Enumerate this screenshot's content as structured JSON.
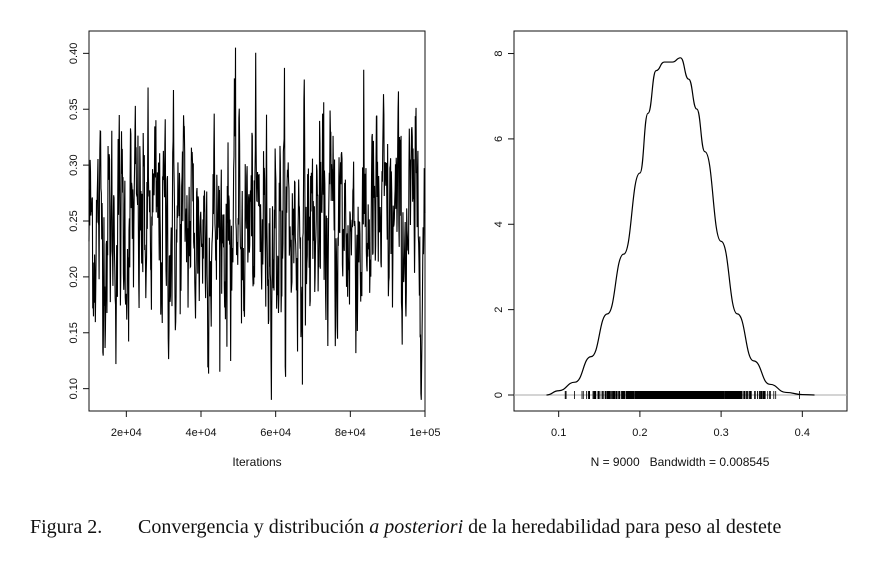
{
  "chart_data": [
    {
      "type": "line",
      "xlabel": "Iterations",
      "ylabel": "",
      "xlim": [
        10000,
        100000
      ],
      "ylim": [
        0.08,
        0.42
      ],
      "x_ticks": [
        20000,
        40000,
        60000,
        80000,
        100000
      ],
      "x_tick_labels": [
        "2e+04",
        "4e+04",
        "6e+04",
        "8e+04",
        "1e+05"
      ],
      "y_ticks": [
        0.1,
        0.15,
        0.2,
        0.25,
        0.3,
        0.35,
        0.4
      ],
      "y_tick_labels": [
        "0.10",
        "0.15",
        "0.20",
        "0.25",
        "0.30",
        "0.35",
        "0.40"
      ],
      "series": [
        {
          "x_start": 10000,
          "x_end": 100000,
          "n": 900,
          "center": 0.245,
          "spread": 0.05,
          "min": 0.09,
          "max": 0.41
        }
      ]
    },
    {
      "type": "area",
      "xlabel": "N = 9000   Bandwidth = 0.008545",
      "ylabel": "",
      "xlim": [
        0.045,
        0.455
      ],
      "ylim": [
        0,
        8.2
      ],
      "x_ticks": [
        0.1,
        0.2,
        0.3,
        0.4
      ],
      "x_tick_labels": [
        "0.1",
        "0.2",
        "0.3",
        "0.4"
      ],
      "y_ticks": [
        0,
        2,
        4,
        6,
        8
      ],
      "y_tick_labels": [
        "0",
        "2",
        "4",
        "6",
        "8"
      ],
      "density": {
        "x": [
          0.085,
          0.1,
          0.12,
          0.14,
          0.16,
          0.18,
          0.2,
          0.21,
          0.22,
          0.23,
          0.24,
          0.25,
          0.26,
          0.27,
          0.28,
          0.3,
          0.32,
          0.34,
          0.36,
          0.38,
          0.4,
          0.415
        ],
        "y": [
          0,
          0.1,
          0.3,
          0.9,
          1.9,
          3.3,
          5.2,
          6.6,
          7.6,
          7.8,
          7.8,
          7.9,
          7.4,
          6.7,
          5.7,
          3.6,
          1.9,
          0.8,
          0.25,
          0.06,
          0.01,
          0
        ]
      },
      "rug_range": [
        0.09,
        0.41
      ]
    }
  ],
  "caption": {
    "number": "Figura 2.",
    "text_before": "Convergencia y distribución ",
    "italic": "a posteriori",
    "text_after": " de la heredabilidad para peso al destete"
  }
}
